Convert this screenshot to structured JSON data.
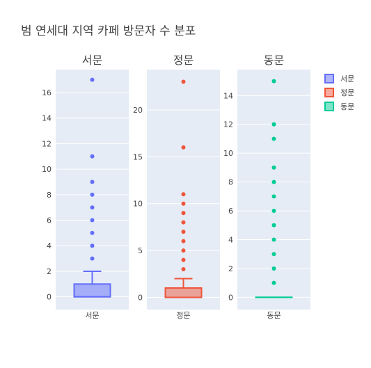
{
  "chart_data": {
    "type": "box",
    "title": "범 연세대 지역 카페 방문자 수 분포",
    "colors": {
      "서문": "#636efa",
      "정문": "#ef553b",
      "동문": "#00cc96"
    },
    "legend": {
      "placement": "right",
      "entries": [
        "서문",
        "정문",
        "동문"
      ]
    },
    "panels": [
      {
        "name": "서문",
        "subplot_title": "서문",
        "category_label": "서문",
        "y_range": [
          -1,
          17.8
        ],
        "y_ticks": [
          0,
          2,
          4,
          6,
          8,
          10,
          12,
          14,
          16
        ],
        "box": {
          "lowerfence": 0,
          "q1": 0,
          "median": 0,
          "q3": 1,
          "upperfence": 2
        },
        "outliers": [
          3,
          4,
          5,
          6,
          7,
          8,
          9,
          11,
          17
        ]
      },
      {
        "name": "정문",
        "subplot_title": "정문",
        "category_label": "정문",
        "y_range": [
          -1.3,
          24.3
        ],
        "y_ticks": [
          0,
          5,
          10,
          15,
          20
        ],
        "box": {
          "lowerfence": 0,
          "q1": 0,
          "median": 0,
          "q3": 1,
          "upperfence": 2
        },
        "outliers": [
          3,
          4,
          5,
          6,
          7,
          8,
          9,
          10,
          11,
          16,
          23
        ]
      },
      {
        "name": "동문",
        "subplot_title": "동문",
        "category_label": "동문",
        "y_range": [
          -0.85,
          15.8
        ],
        "y_ticks": [
          0,
          2,
          4,
          6,
          8,
          10,
          12,
          14
        ],
        "box": {
          "lowerfence": 0,
          "q1": 0,
          "median": 0,
          "q3": 0,
          "upperfence": 0
        },
        "outliers": [
          1,
          2,
          3,
          4,
          5,
          6,
          7,
          8,
          9,
          11,
          12,
          15
        ]
      }
    ]
  }
}
